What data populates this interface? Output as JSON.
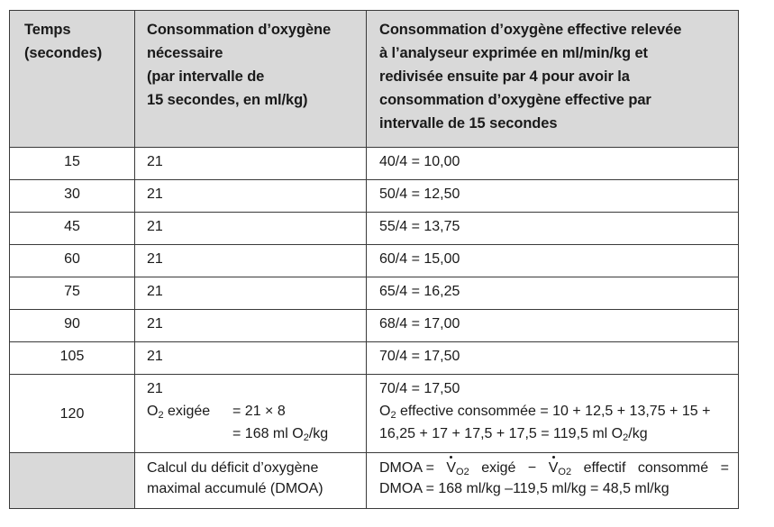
{
  "table": {
    "headers": {
      "time": [
        "Temps",
        "(secondes)"
      ],
      "needed": [
        "Consommation d’oxygène",
        "nécessaire",
        "(par intervalle de",
        "15 secondes, en ml/kg)"
      ],
      "effective": [
        "Consommation d’oxygène effective relevée",
        "à l’analyseur exprimée en ml/min/kg et",
        "redivisée ensuite par 4 pour avoir la",
        "consommation d’oxygène effective par",
        "intervalle de 15 secondes"
      ]
    },
    "rows": [
      {
        "time": "15",
        "needed": "21",
        "effective": "40/4 = 10,00"
      },
      {
        "time": "30",
        "needed": "21",
        "effective": "50/4 = 12,50"
      },
      {
        "time": "45",
        "needed": "21",
        "effective": "55/4 = 13,75"
      },
      {
        "time": "60",
        "needed": "21",
        "effective": "60/4 = 15,00"
      },
      {
        "time": "75",
        "needed": "21",
        "effective": "65/4 = 16,25"
      },
      {
        "time": "90",
        "needed": "21",
        "effective": "68/4 = 17,00"
      },
      {
        "time": "105",
        "needed": "21",
        "effective": "70/4 = 17,50"
      }
    ],
    "row120": {
      "time": "120",
      "needed_value": "21",
      "o2_label_prefix": "O",
      "o2_label_sub": "2",
      "o2_label_suffix": " exigée",
      "o2_formula": "= 21 × 8",
      "o2_result_prefix": "= 168 ml O",
      "o2_result_sub": "2",
      "o2_result_suffix": "/kg",
      "effective_value": "70/4 = 17,50",
      "eff_line2_prefix": "O",
      "eff_line2_sub": "2",
      "eff_line2_suffix": " effective consommée = 10 + 12,5 + 13,75 + 15 +",
      "eff_line3_prefix": "16,25 + 17 + 17,5 + 17,5 = 119,5 ml O",
      "eff_line3_sub": "2",
      "eff_line3_suffix": "/kg"
    },
    "dmoa": {
      "label_line1": "Calcul du déficit d’oxygène",
      "label_line2": "maximal accumulé (DMOA)",
      "eq_part1": "DMOA =",
      "eq_part2_v": "V",
      "eq_part2_sub": "O2",
      "eq_part2_rest": "exigé",
      "eq_minus": "−",
      "eq_part3_v": "V",
      "eq_part3_sub": "O2",
      "eq_part3_rest": "effectif",
      "eq_part4": "consommé",
      "eq_equals": "=",
      "line2": "DMOA = 168 ml/kg –119,5 ml/kg = 48,5 ml/kg"
    }
  },
  "colors": {
    "header_background": "#d9d9d9",
    "border": "#3a3a3a",
    "text": "#1a1a1a"
  }
}
